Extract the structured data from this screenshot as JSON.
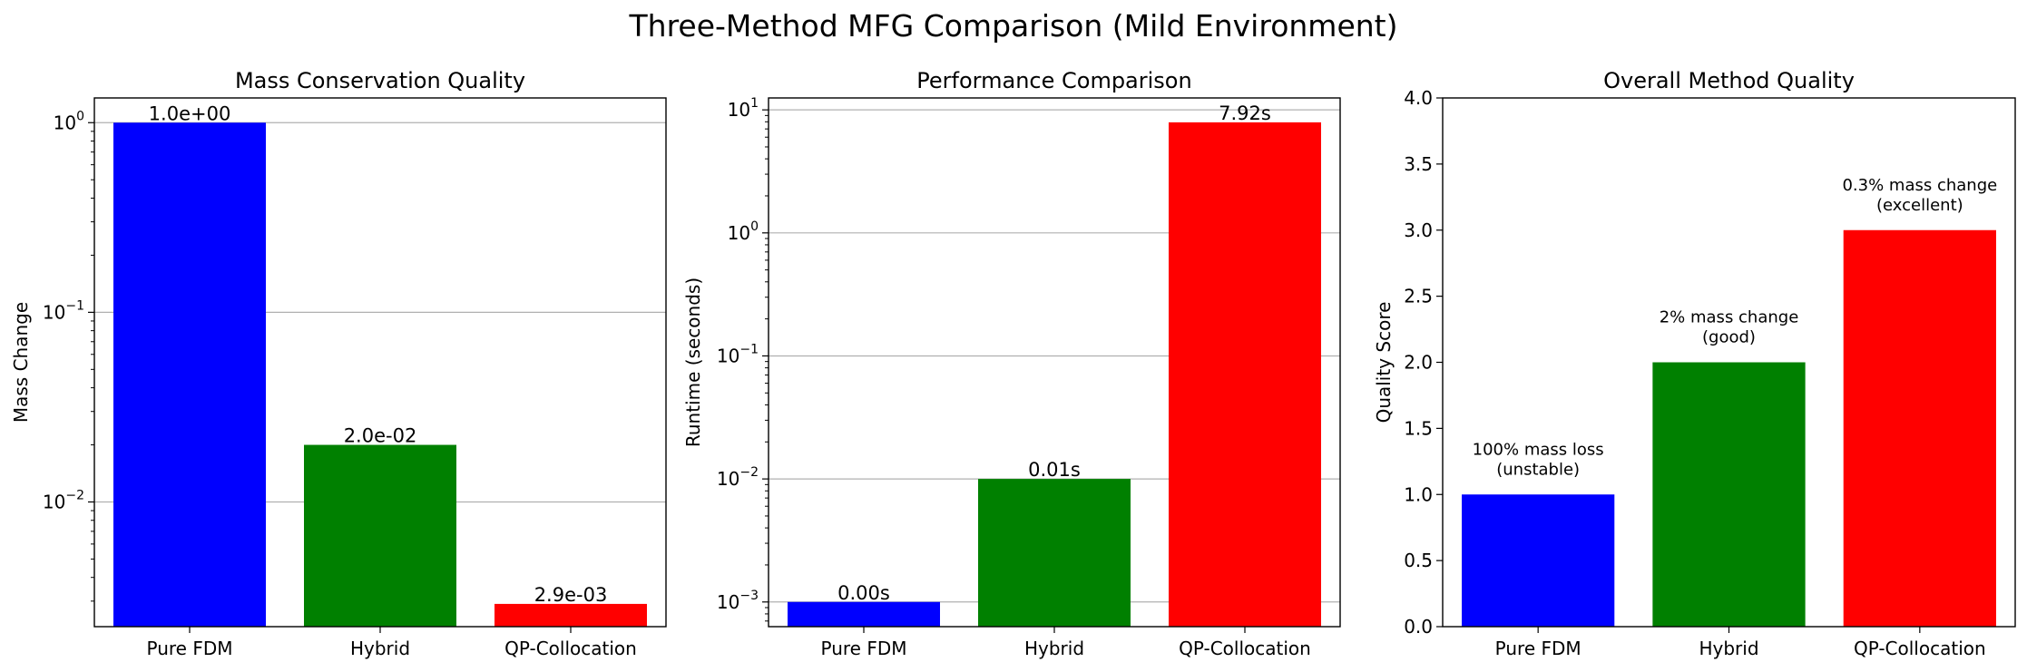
{
  "figure": {
    "suptitle": "Three-Method MFG Comparison (Mild Environment)"
  },
  "chart_data": [
    {
      "type": "bar",
      "title": "Mass Conservation Quality",
      "xlabel": "",
      "ylabel": "Mass Change",
      "yscale": "log",
      "ylim": [
        0.0022,
        1.35
      ],
      "yticks": [
        {
          "value": 1,
          "exp": "0"
        },
        {
          "value": 0.1,
          "exp": "−1"
        },
        {
          "value": 0.01,
          "exp": "−2"
        }
      ],
      "grid": true,
      "categories": [
        "Pure FDM",
        "Hybrid",
        "QP-Collocation"
      ],
      "values": [
        1.0,
        0.02,
        0.0029
      ],
      "colors": [
        "#0000ff",
        "#008000",
        "#ff0000"
      ],
      "bar_labels": [
        "1.0e+00",
        "2.0e-02",
        "2.9e-03"
      ]
    },
    {
      "type": "bar",
      "title": "Performance Comparison",
      "xlabel": "",
      "ylabel": "Runtime (seconds)",
      "yscale": "log",
      "ylim": [
        0.00063,
        12.5
      ],
      "yticks": [
        {
          "value": 10,
          "exp": "1"
        },
        {
          "value": 1,
          "exp": "0"
        },
        {
          "value": 0.1,
          "exp": "−1"
        },
        {
          "value": 0.01,
          "exp": "−2"
        },
        {
          "value": 0.001,
          "exp": "−3"
        }
      ],
      "grid": true,
      "categories": [
        "Pure FDM",
        "Hybrid",
        "QP-Collocation"
      ],
      "values": [
        0.001,
        0.01,
        7.92
      ],
      "colors": [
        "#0000ff",
        "#008000",
        "#ff0000"
      ],
      "bar_labels": [
        "0.00s",
        "0.01s",
        "7.92s"
      ]
    },
    {
      "type": "bar",
      "title": "Overall Method Quality",
      "xlabel": "",
      "ylabel": "Quality Score",
      "yscale": "linear",
      "ylim": [
        0,
        4
      ],
      "yticks": [
        {
          "value": 0,
          "label": "0.0"
        },
        {
          "value": 0.5,
          "label": "0.5"
        },
        {
          "value": 1,
          "label": "1.0"
        },
        {
          "value": 1.5,
          "label": "1.5"
        },
        {
          "value": 2,
          "label": "2.0"
        },
        {
          "value": 2.5,
          "label": "2.5"
        },
        {
          "value": 3,
          "label": "3.0"
        },
        {
          "value": 3.5,
          "label": "3.5"
        },
        {
          "value": 4,
          "label": "4.0"
        }
      ],
      "grid": false,
      "categories": [
        "Pure FDM",
        "Hybrid",
        "QP-Collocation"
      ],
      "values": [
        1,
        2,
        3
      ],
      "colors": [
        "#0000ff",
        "#008000",
        "#ff0000"
      ],
      "annotations": [
        [
          "100% mass loss",
          "(unstable)"
        ],
        [
          "2% mass change",
          "(good)"
        ],
        [
          "0.3% mass change",
          "(excellent)"
        ]
      ]
    }
  ]
}
